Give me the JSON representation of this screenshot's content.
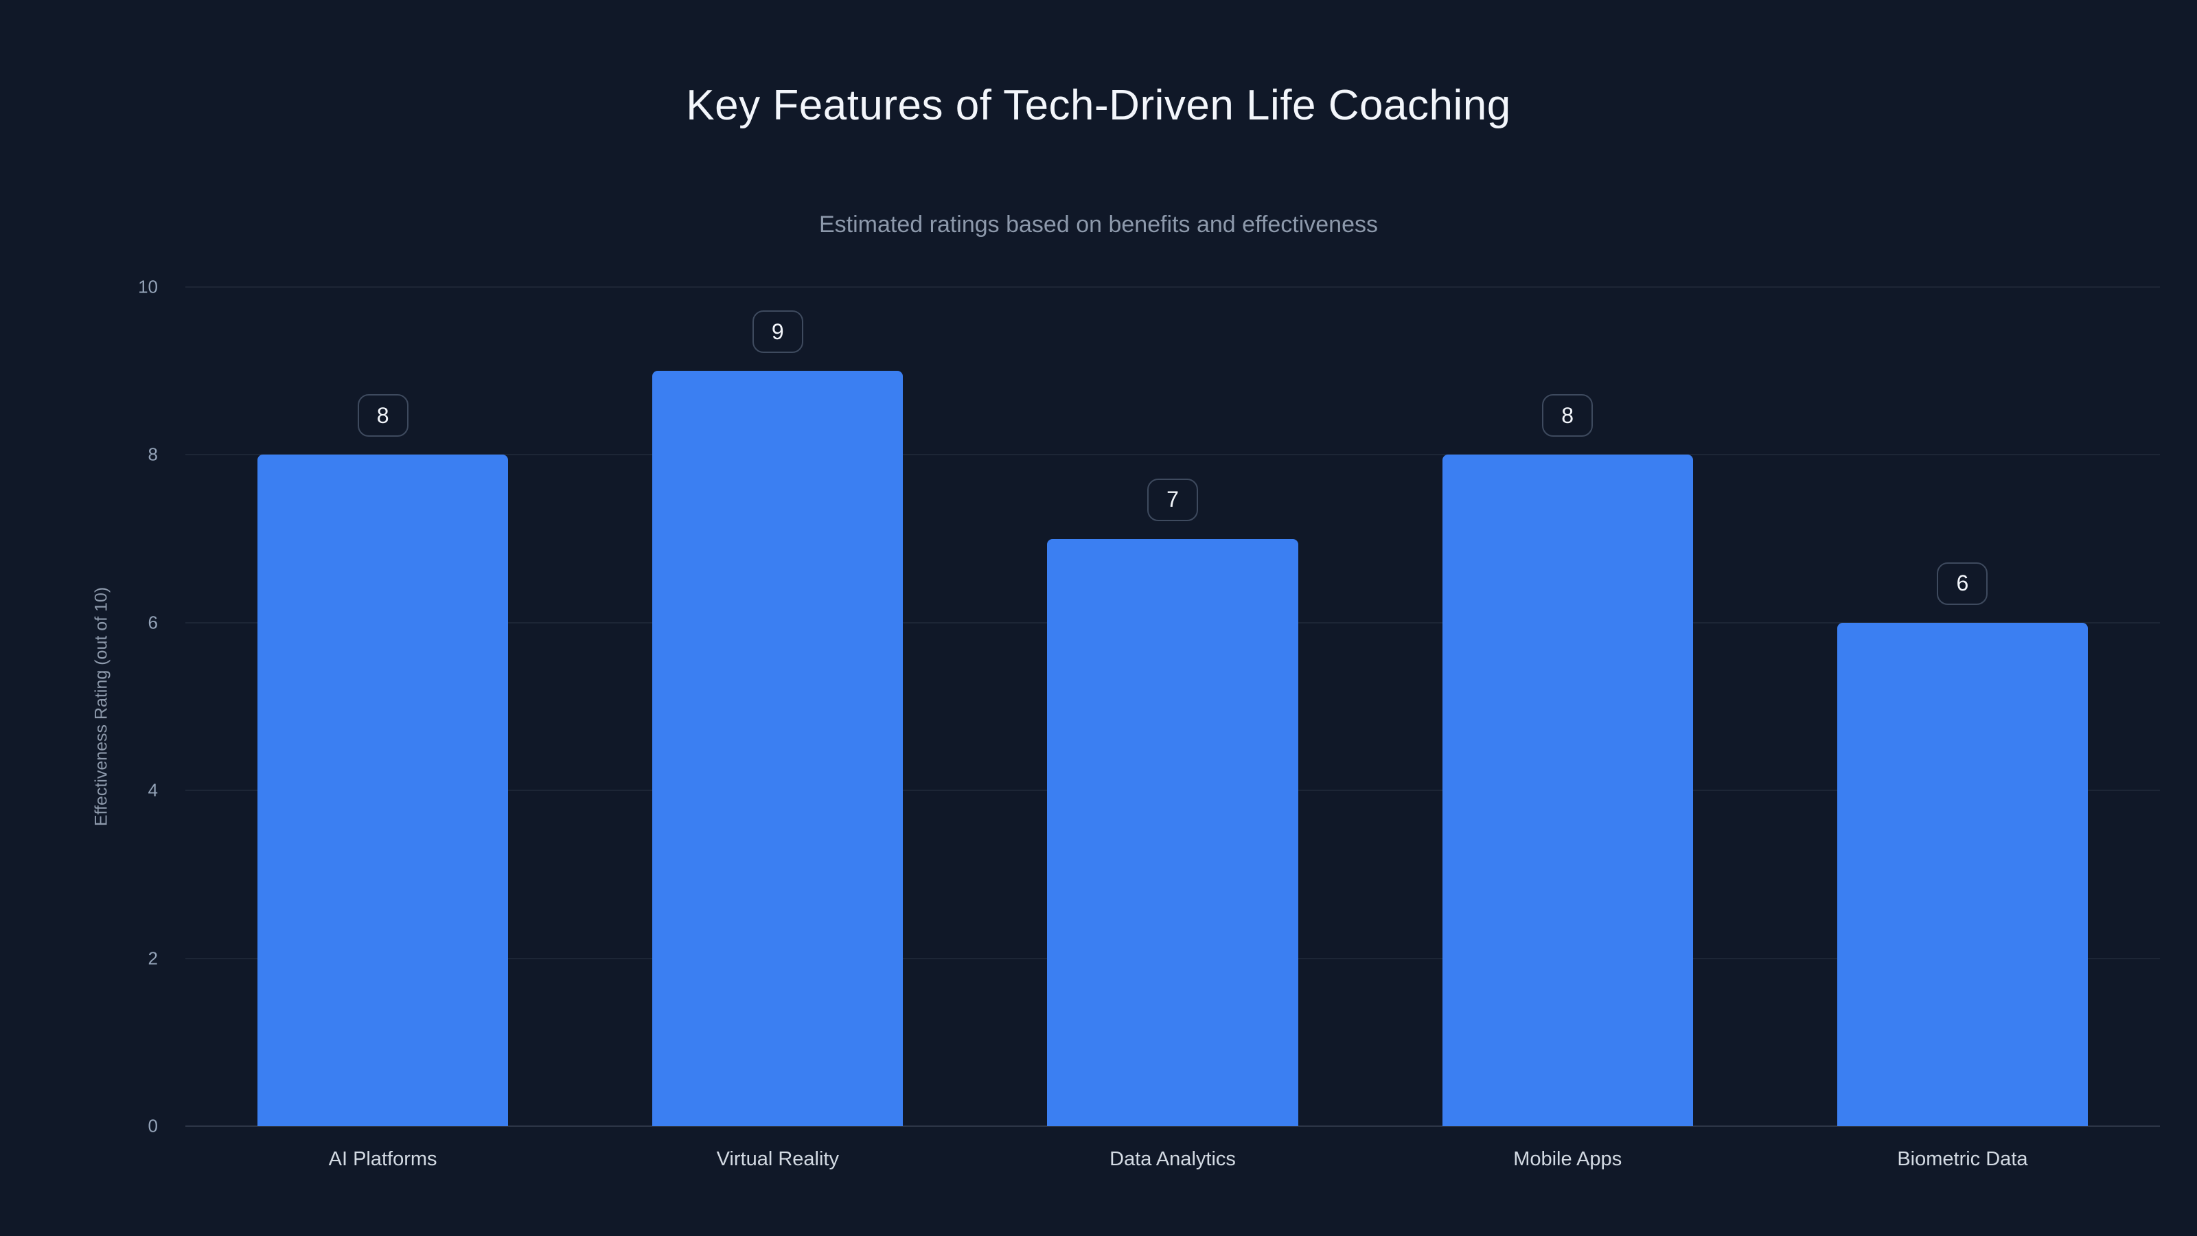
{
  "chart": {
    "title": "Key Features of Tech-Driven Life Coaching",
    "subtitle": "Estimated ratings based on benefits and effectiveness",
    "ylabel": "Effectiveness Rating (out of 10)"
  },
  "chart_data": {
    "type": "bar",
    "categories": [
      "AI Platforms",
      "Virtual Reality",
      "Data Analytics",
      "Mobile Apps",
      "Biometric Data"
    ],
    "values": [
      8,
      9,
      7,
      8,
      6
    ],
    "title": "Key Features of Tech-Driven Life Coaching",
    "subtitle": "Estimated ratings based on benefits and effectiveness",
    "xlabel": "",
    "ylabel": "Effectiveness Rating (out of 10)",
    "ylim": [
      0,
      10
    ],
    "yticks": [
      0,
      2,
      4,
      6,
      8,
      10
    ],
    "bar_color": "#3b7ff2",
    "background_color": "#101828",
    "grid": true,
    "legend_position": "none",
    "value_labels": "badges-above-bars"
  }
}
